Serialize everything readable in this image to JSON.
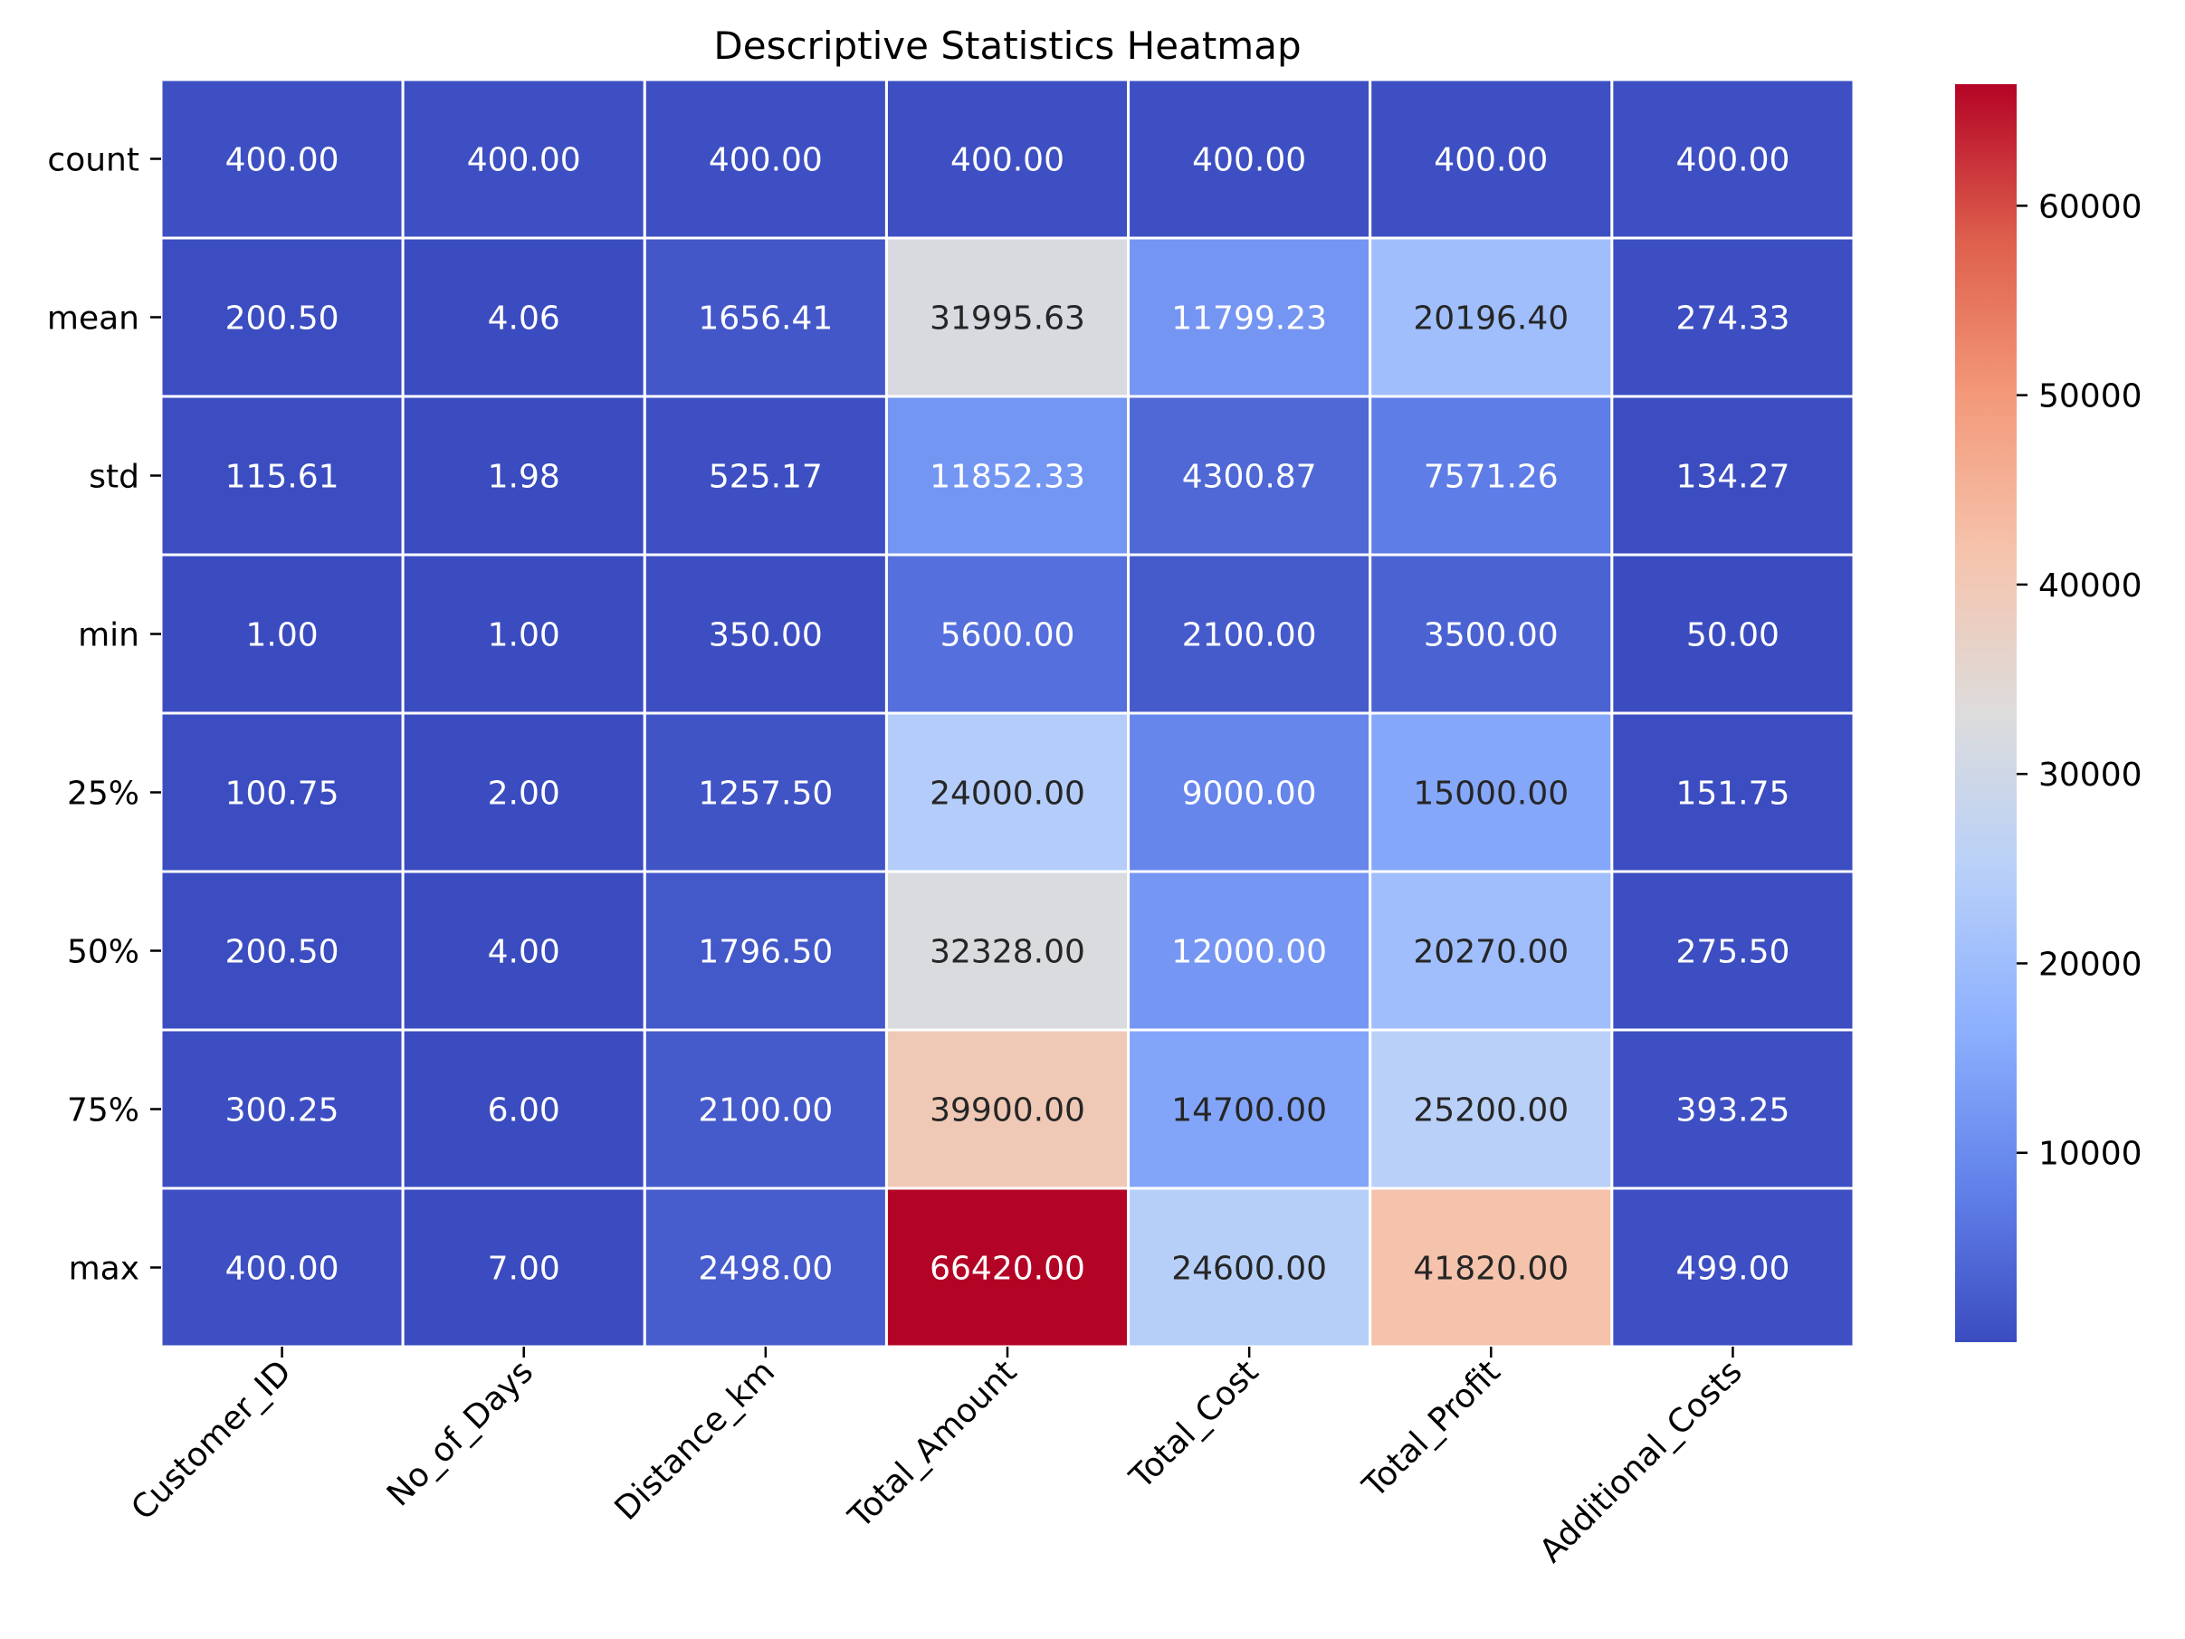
{
  "chart_data": {
    "type": "heatmap",
    "title": "Descriptive Statistics Heatmap",
    "xlabel": "",
    "ylabel": "",
    "columns": [
      "Customer_ID",
      "No_of_Days",
      "Distance_km",
      "Total_Amount",
      "Total_Cost",
      "Total_Profit",
      "Additional_Costs"
    ],
    "rows": [
      "count",
      "mean",
      "std",
      "min",
      "25%",
      "50%",
      "75%",
      "max"
    ],
    "values": [
      [
        400.0,
        400.0,
        400.0,
        400.0,
        400.0,
        400.0,
        400.0
      ],
      [
        200.5,
        4.06,
        1656.41,
        31995.63,
        11799.23,
        20196.4,
        274.33
      ],
      [
        115.61,
        1.98,
        525.17,
        11852.33,
        4300.87,
        7571.26,
        134.27
      ],
      [
        1.0,
        1.0,
        350.0,
        5600.0,
        2100.0,
        3500.0,
        50.0
      ],
      [
        100.75,
        2.0,
        1257.5,
        24000.0,
        9000.0,
        15000.0,
        151.75
      ],
      [
        200.5,
        4.0,
        1796.5,
        32328.0,
        12000.0,
        20270.0,
        275.5
      ],
      [
        300.25,
        6.0,
        2100.0,
        39900.0,
        14700.0,
        25200.0,
        393.25
      ],
      [
        400.0,
        7.0,
        2498.0,
        66420.0,
        24600.0,
        41820.0,
        499.0
      ]
    ],
    "value_format": "2 decimals",
    "colormap": "coolwarm",
    "colormap_stops": [
      "#3b4cc0",
      "#6282ea",
      "#8db0fe",
      "#b8d0f9",
      "#dddcdc",
      "#f5c4ad",
      "#f49a7b",
      "#de604d",
      "#b40426"
    ],
    "colorbar": {
      "ticks": [
        10000,
        20000,
        30000,
        40000,
        50000,
        60000
      ],
      "tick_labels": [
        "10000",
        "20000",
        "30000",
        "40000",
        "50000",
        "60000"
      ],
      "range": [
        1.0,
        66420.0
      ]
    }
  }
}
